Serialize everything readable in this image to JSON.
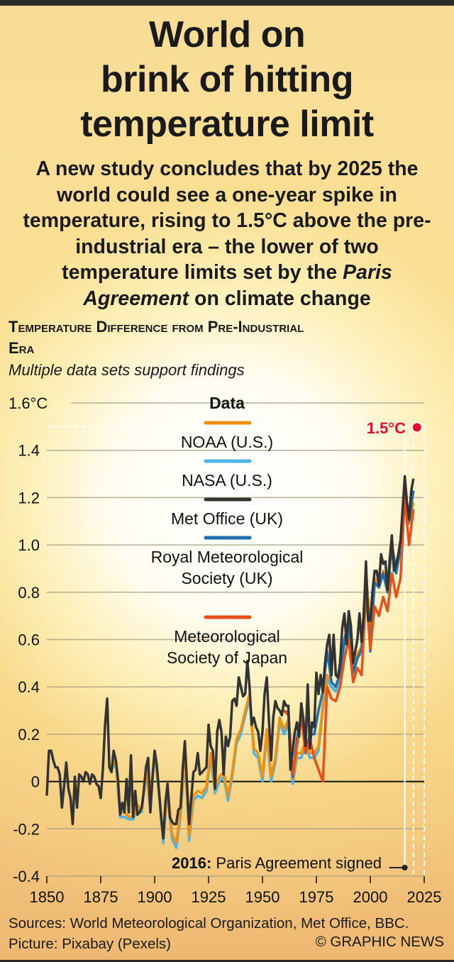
{
  "header": {
    "title_lines": [
      "World on",
      "brink of hitting",
      "temperature limit"
    ],
    "subtitle_pre": "A new study concludes that by 2025 the world could see a one-year spike in temperature, rising to 1.5°C above the pre-industrial era – the lower of two temperature limits set by the ",
    "subtitle_em": "Paris Agreement",
    "subtitle_post": " on climate change"
  },
  "chart_data": {
    "type": "line",
    "title": "Temperature Difference from Pre-Industrial Era",
    "subtitle": "Multiple data sets support findings",
    "xlabel": "",
    "ylabel": "°C",
    "xlim": [
      1850,
      2025
    ],
    "ylim": [
      -0.4,
      1.6
    ],
    "x_ticks": [
      "1850",
      "1875",
      "1900",
      "1925",
      "1950",
      "1975",
      "2000",
      "2025"
    ],
    "y_ticks": [
      {
        "v": 1.6,
        "label": "1.6°C"
      },
      {
        "v": 1.4,
        "label": "1.4"
      },
      {
        "v": 1.2,
        "label": "1.2"
      },
      {
        "v": 1.0,
        "label": "1.0"
      },
      {
        "v": 0.8,
        "label": "0.8"
      },
      {
        "v": 0.6,
        "label": "0.6"
      },
      {
        "v": 0.4,
        "label": "0.4"
      },
      {
        "v": 0.2,
        "label": "0.2"
      },
      {
        "v": 0,
        "label": "0"
      },
      {
        "v": -0.2,
        "label": "-0.2"
      },
      {
        "v": -0.4,
        "label": "-0.4"
      }
    ],
    "grid": true,
    "legend_title": "Data",
    "legend_placement": "top-center",
    "series": [
      {
        "name": "NOAA (U.S.)",
        "color": "#f0900f",
        "start": 1880,
        "step": 2,
        "values": [
          0.06,
          0.09,
          -0.13,
          -0.13,
          -0.15,
          -0.15,
          -0.1,
          -0.12,
          0.06,
          -0.1,
          0.13,
          -0.04,
          -0.24,
          -0.02,
          -0.22,
          -0.26,
          -0.13,
          0.11,
          -0.23,
          -0.06,
          -0.04,
          -0.05,
          -0.02,
          0.12,
          -0.03,
          0.02,
          0.04,
          -0.06,
          0.04,
          0.18,
          0.22,
          0.3,
          0.37,
          0.14,
          0.12,
          0.02,
          0.22,
          0.02,
          0.1,
          0.27,
          0.22,
          0.26,
          0.01,
          0.12,
          0.12,
          0.17,
          0.12,
          0.12,
          0.15,
          0.32,
          0.45,
          0.42,
          0.4,
          0.46,
          0.6,
          0.67,
          0.47,
          0.54,
          0.57,
          0.89,
          0.64,
          0.86,
          0.83,
          0.89,
          0.81,
          1.0,
          0.9,
          0.99,
          1.2,
          1.09,
          1.18
        ]
      },
      {
        "name": "NASA (U.S.)",
        "color": "#4db3e6",
        "start": 1880,
        "step": 2,
        "values": [
          0.05,
          0.08,
          -0.15,
          -0.15,
          -0.16,
          -0.16,
          -0.12,
          -0.13,
          0.05,
          -0.12,
          0.12,
          -0.05,
          -0.26,
          -0.03,
          -0.24,
          -0.28,
          -0.15,
          0.1,
          -0.25,
          -0.08,
          -0.06,
          -0.07,
          -0.04,
          0.1,
          -0.05,
          0.0,
          0.02,
          -0.08,
          0.02,
          0.16,
          0.2,
          0.28,
          0.35,
          0.12,
          0.1,
          0.0,
          0.2,
          0.0,
          0.08,
          0.25,
          0.2,
          0.24,
          -0.01,
          0.1,
          0.1,
          0.15,
          0.1,
          0.1,
          0.13,
          0.3,
          0.43,
          0.4,
          0.38,
          0.44,
          0.58,
          0.65,
          0.45,
          0.52,
          0.55,
          0.88,
          0.62,
          0.85,
          0.82,
          0.88,
          0.8,
          1.0,
          0.89,
          0.98,
          1.22,
          1.1,
          1.23
        ]
      },
      {
        "name": "Met Office (UK)",
        "color": "#333333",
        "start": 1850,
        "step": 1,
        "values": [
          -0.06,
          0.13,
          0.13,
          0.09,
          0.06,
          0.06,
          0.03,
          -0.11,
          -0.02,
          0.08,
          -0.03,
          -0.07,
          -0.18,
          0.02,
          -0.11,
          0.03,
          0.02,
          0,
          0.04,
          0.03,
          -0.01,
          0.03,
          0.02,
          -0.01,
          -0.02,
          -0.07,
          0.05,
          0.24,
          0.35,
          0.06,
          0.04,
          0.13,
          0.09,
          0.01,
          -0.14,
          -0.09,
          -0.13,
          0.01,
          -0.13,
          0.11,
          -0.15,
          -0.04,
          -0.14,
          -0.13,
          -0.11,
          -0.04,
          0.06,
          0.1,
          -0.13,
          0.02,
          0.13,
          0.07,
          -0.04,
          -0.15,
          -0.24,
          -0.09,
          -0.01,
          -0.15,
          -0.17,
          -0.18,
          -0.18,
          -0.12,
          -0.11,
          0.05,
          0.17,
          -0.01,
          -0.18,
          -0.07,
          0.04,
          0.05,
          0.12,
          0.03,
          0.04,
          0.05,
          0.06,
          0.24,
          0.15,
          0.13,
          -0.03,
          0.21,
          0.26,
          0.21,
          0.03,
          0.19,
          0.15,
          0.19,
          0.34,
          0.35,
          0.32,
          0.44,
          0.4,
          0.36,
          0.37,
          0.51,
          0.4,
          0.24,
          0.27,
          0.23,
          0.21,
          0.13,
          0.21,
          0.37,
          0.44,
          0.26,
          0.09,
          0.27,
          0.34,
          0.31,
          0.3,
          0.28,
          0.34,
          0.32,
          0.32,
          0.05,
          0.13,
          0.21,
          0.25,
          0.19,
          0.33,
          0.26,
          0.15,
          0.41,
          0.14,
          0.25,
          0.23,
          0.46,
          0.37,
          0.45,
          0.38,
          0.5,
          0.58,
          0.62,
          0.45,
          0.62,
          0.45,
          0.44,
          0.5,
          0.65,
          0.71,
          0.58,
          0.72,
          0.66,
          0.5,
          0.55,
          0.6,
          0.71,
          0.59,
          0.7,
          0.93,
          0.68,
          0.68,
          0.8,
          0.89,
          0.89,
          0.83,
          0.96,
          0.92,
          0.93,
          0.81,
          0.94,
          1.04,
          0.89,
          0.92,
          0.96,
          1.02,
          1.15,
          1.29,
          1.18,
          1.11,
          1.23,
          1.28
        ]
      },
      {
        "name": "Royal Meteorological Society (UK)",
        "color": "#1f6fae",
        "start": 1960,
        "step": 2,
        "values": [
          0.3,
          0.29,
          0.02,
          0.18,
          0.28,
          0.12,
          0.2,
          0.2,
          0.3,
          0.38,
          0.55,
          0.42,
          0.4,
          0.46,
          0.6,
          0.68,
          0.46,
          0.52,
          0.56,
          0.88,
          0.55,
          0.84,
          0.82,
          0.88,
          0.8,
          1.0,
          0.88,
          0.98,
          1.22,
          1.1,
          1.23
        ]
      },
      {
        "name": "Meteorological Society of Japan",
        "color": "#e8501a",
        "start": 1960,
        "step": 2,
        "values": [
          0.3,
          0.28,
          0.03,
          0.15,
          0.27,
          0.12,
          0.18,
          0.1,
          0.05,
          0.0,
          0.4,
          0.35,
          0.34,
          0.4,
          0.52,
          0.6,
          0.42,
          0.48,
          0.45,
          0.8,
          0.56,
          0.74,
          0.7,
          0.78,
          0.72,
          0.88,
          0.78,
          0.86,
          1.2,
          1.0,
          1.15
        ]
      }
    ],
    "annotations": {
      "limit_label": "1.5°C",
      "limit_value": 1.5,
      "limit_year": 2020,
      "event_year_bold": "2016:",
      "event_text": "Paris Agreement signed",
      "event_year": 2016
    }
  },
  "footer": {
    "sources": "Sources: World Meteorological Organization, Met Office, BBC. Picture: Pixabay (Pexels)",
    "credit": "© GRAPHIC NEWS"
  }
}
